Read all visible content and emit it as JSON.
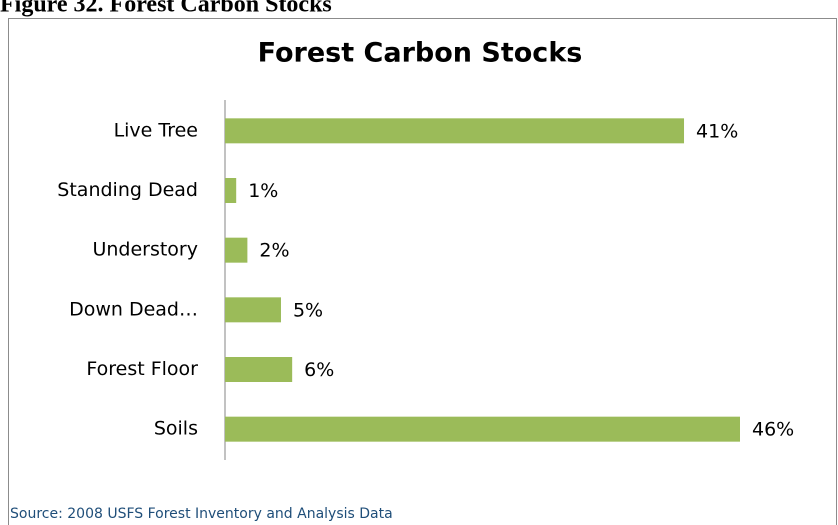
{
  "figure_caption": "Figure 32. Forest Carbon Stocks",
  "chart_data": {
    "type": "bar",
    "orientation": "horizontal",
    "title": "Forest Carbon Stocks",
    "categories": [
      "Live Tree",
      "Standing Dead",
      "Understory",
      "Down Dead…",
      "Forest Floor",
      "Soils"
    ],
    "values": [
      41,
      1,
      2,
      5,
      6,
      46
    ],
    "value_labels": [
      "41%",
      "1%",
      "2%",
      "5%",
      "6%",
      "46%"
    ],
    "color": "#9bbb59",
    "source": "Source: 2008 USFS Forest Inventory and Analysis Data"
  }
}
